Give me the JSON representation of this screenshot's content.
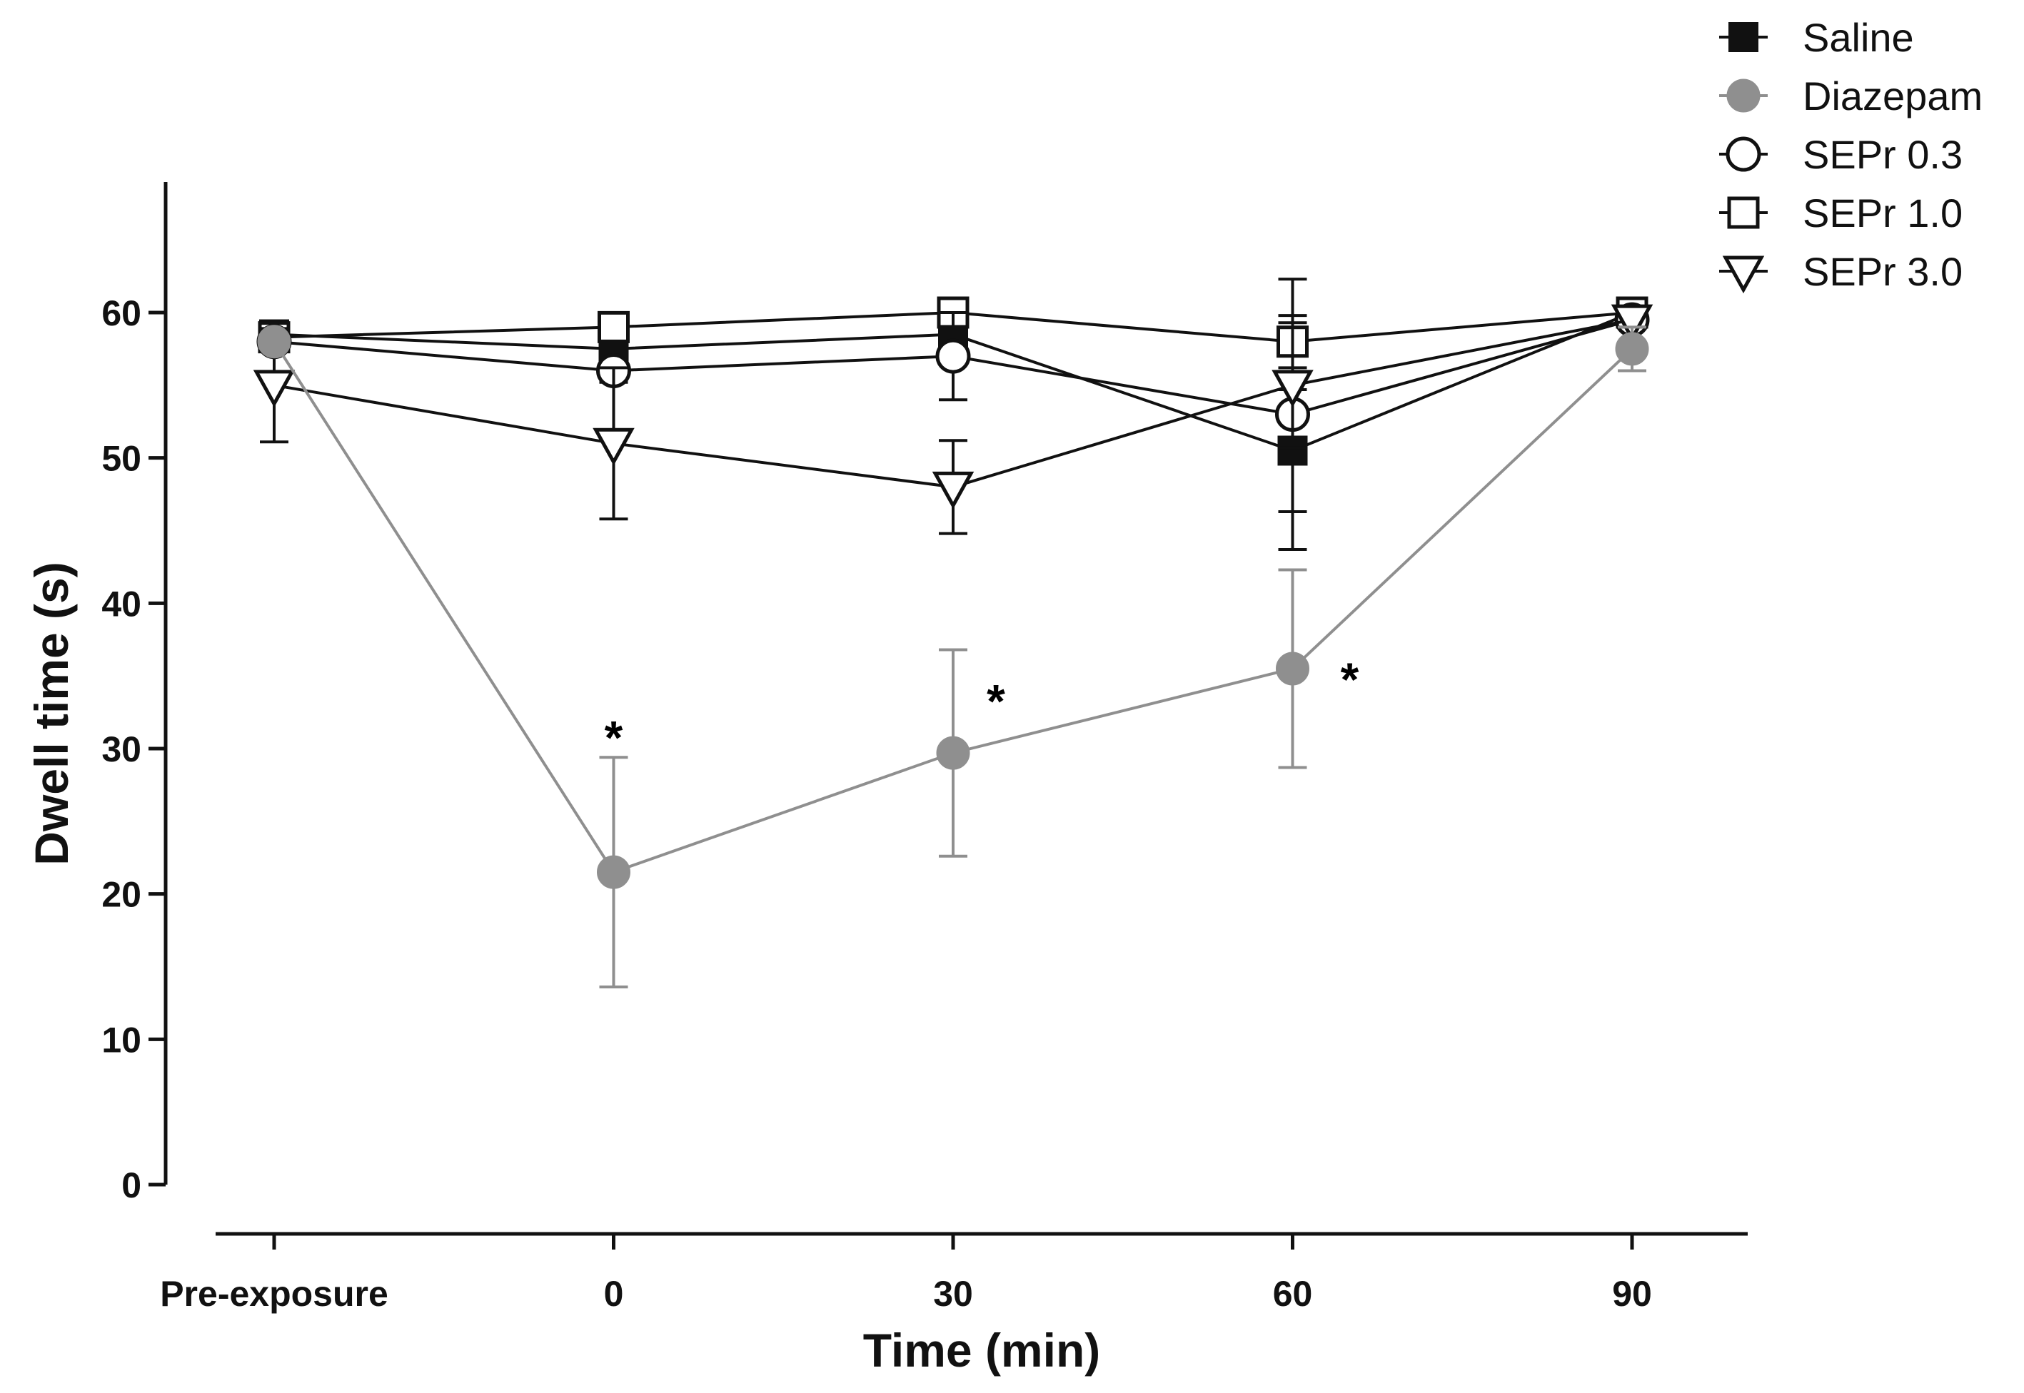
{
  "chart_data": {
    "type": "line",
    "title": "",
    "xlabel": "Time (min)",
    "ylabel": "Dwell time (s)",
    "categories": [
      "Pre-exposure",
      "0",
      "30",
      "60",
      "90"
    ],
    "ylim": [
      0,
      70
    ],
    "yticks": [
      0,
      10,
      20,
      30,
      40,
      50,
      60
    ],
    "grid": false,
    "legend_position": "top-right",
    "series": [
      {
        "name": "Saline",
        "marker": "square-filled",
        "color": "#111111",
        "values": [
          58.5,
          57.5,
          58.5,
          50.5,
          60
        ],
        "errors": [
          0.5,
          0.8,
          0.8,
          4.2,
          0.3
        ]
      },
      {
        "name": "SEPr 1.0",
        "marker": "square-open",
        "color": "#111111",
        "values": [
          58.3,
          59,
          60,
          58,
          60
        ],
        "errors": [
          0.4,
          0.5,
          0.4,
          1.8,
          0.3
        ]
      },
      {
        "name": "SEPr 0.3",
        "marker": "circle-open",
        "color": "#111111",
        "values": [
          58,
          56,
          57,
          53,
          59.5
        ],
        "errors": [
          0.5,
          0.8,
          3,
          9.3,
          0.5
        ]
      },
      {
        "name": "SEPr 3.0",
        "marker": "triangle-down-open",
        "color": "#111111",
        "values": [
          55,
          51,
          48,
          55,
          59.5
        ],
        "errors": [
          3.9,
          5.2,
          3.2,
          4.3,
          0.5
        ]
      },
      {
        "name": "Diazepam",
        "marker": "circle-filled",
        "color": "#8f8f8f",
        "values": [
          58,
          21.5,
          29.7,
          35.5,
          57.5
        ],
        "errors": [
          0.4,
          7.9,
          7.1,
          6.8,
          1.5
        ]
      }
    ],
    "legend_order": [
      "Saline",
      "Diazepam",
      "SEPr 0.3",
      "SEPr 1.0",
      "SEPr 3.0"
    ],
    "annotations": [
      {
        "text": "*",
        "category": "0",
        "y": 31.5
      },
      {
        "text": "*",
        "category": "30",
        "y": 34
      },
      {
        "text": "*",
        "category": "60",
        "y": 35.5
      }
    ]
  }
}
